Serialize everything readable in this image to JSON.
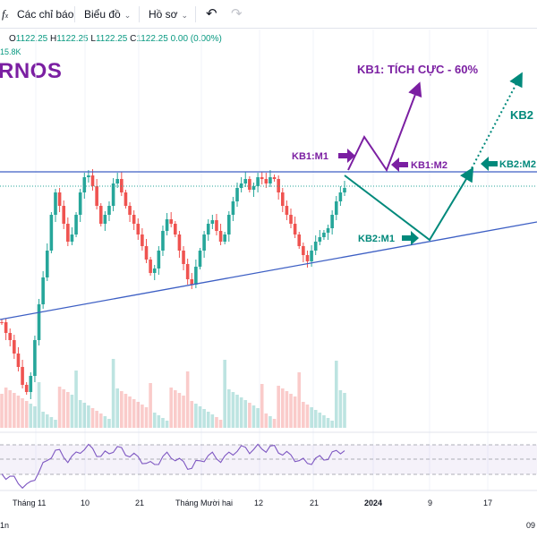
{
  "toolbar": {
    "indicators_label": "Các chỉ báo",
    "chart_type_label": "Biểu đồ",
    "profile_label": "Hồ sơ"
  },
  "legend": {
    "o_label": "O",
    "o": "1122.25",
    "h_label": "H",
    "h": "1122.25",
    "l_label": "L",
    "l": "1122.25",
    "c_label": "C",
    "c": "1122.25",
    "change": "0.00 (0.00%)",
    "volume": "15.8K"
  },
  "symbol": "RNOS",
  "annotations": {
    "kb1_title": "KB1: TÍCH CỰC - 60%",
    "kb2_title": "KB2",
    "kb1_m1": "KB1:M1",
    "kb1_m2": "KB1:M2",
    "kb2_m1": "KB2:M1",
    "kb2_m2": "KB2:M2"
  },
  "x_axis": {
    "labels": [
      "Tháng 11",
      "10",
      "21",
      "Tháng Mười hai",
      "12",
      "21",
      "2024",
      "9",
      "17"
    ],
    "bottom_left": "1n",
    "bottom_right": "09"
  },
  "colors": {
    "up": "#26a69a",
    "down": "#ef5350",
    "kb1": "#7b1fa2",
    "kb2": "#00897b",
    "trendline": "#3d5fc4",
    "rsi": "#7e57c2"
  }
}
